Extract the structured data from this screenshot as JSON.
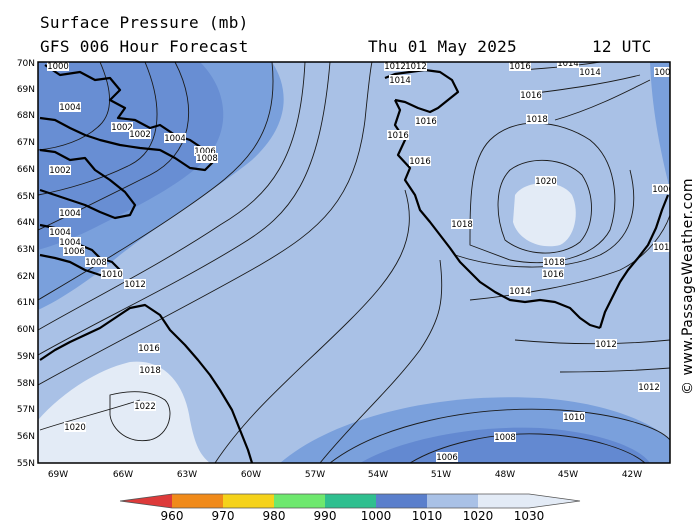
{
  "header": {
    "title": "Surface Pressure (mb)",
    "model": "GFS 006 Hour Forecast",
    "date": "Thu 01 May 2025",
    "time": "12 UTC"
  },
  "credit": "© www.PassageWeather.com",
  "map": {
    "lat_labels": [
      "70N",
      "69N",
      "68N",
      "67N",
      "66N",
      "65N",
      "64N",
      "63N",
      "62N",
      "61N",
      "60N",
      "59N",
      "58N",
      "57N",
      "56N",
      "55N"
    ],
    "lon_labels": [
      "69W",
      "66W",
      "63W",
      "60W",
      "57W",
      "54W",
      "51W",
      "48W",
      "45W",
      "42W"
    ],
    "isobar_labels": [
      "1000",
      "1002",
      "1004",
      "1006",
      "1008",
      "1010",
      "1012",
      "1014",
      "1016",
      "1018",
      "1020",
      "1022"
    ],
    "colors": {
      "low_1000": "#5a7fcc",
      "mid_1010": "#7aa0dc",
      "high_1020": "#a9c1e6",
      "peak_1030": "#e3ebf6"
    }
  },
  "colorbar": {
    "labels": [
      "960",
      "970",
      "980",
      "990",
      "1000",
      "1010",
      "1020",
      "1030"
    ],
    "colors": [
      "#dd3a3a",
      "#f08a1a",
      "#f5d21a",
      "#6ee86e",
      "#2fbf8f",
      "#5a7fcc",
      "#a9c1e6",
      "#e3ebf6"
    ]
  }
}
